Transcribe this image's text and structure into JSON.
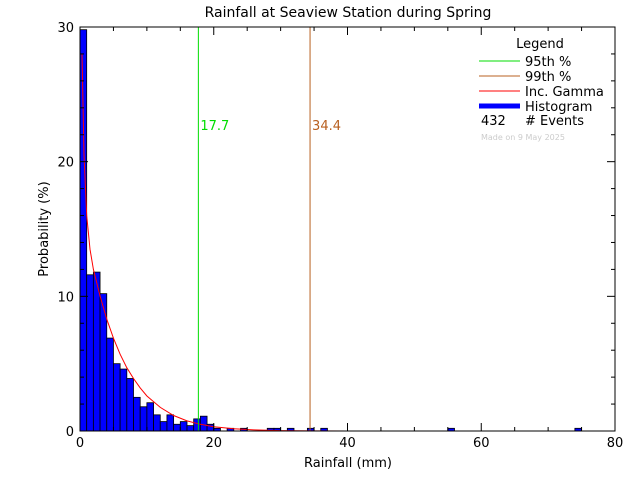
{
  "chart_data": {
    "type": "bar",
    "title": "Rainfall at Seaview Station during Spring",
    "xlabel": "Rainfall (mm)",
    "ylabel": "Probability (%)",
    "xlim": [
      0,
      80
    ],
    "ylim": [
      0,
      30
    ],
    "x_ticks": [
      0,
      20,
      40,
      60,
      80
    ],
    "y_ticks": [
      0,
      10,
      20,
      30
    ],
    "bin_width_mm": 1,
    "histogram": {
      "name": "Histogram",
      "color": "#0000ff",
      "bins": [
        {
          "x": 0,
          "value": 29.8
        },
        {
          "x": 1,
          "value": 11.6
        },
        {
          "x": 2,
          "value": 11.8
        },
        {
          "x": 3,
          "value": 10.2
        },
        {
          "x": 4,
          "value": 6.9
        },
        {
          "x": 5,
          "value": 5.0
        },
        {
          "x": 6,
          "value": 4.6
        },
        {
          "x": 7,
          "value": 3.9
        },
        {
          "x": 8,
          "value": 2.5
        },
        {
          "x": 9,
          "value": 1.8
        },
        {
          "x": 10,
          "value": 2.1
        },
        {
          "x": 11,
          "value": 1.2
        },
        {
          "x": 12,
          "value": 0.7
        },
        {
          "x": 13,
          "value": 1.2
        },
        {
          "x": 14,
          "value": 0.5
        },
        {
          "x": 15,
          "value": 0.7
        },
        {
          "x": 16,
          "value": 0.4
        },
        {
          "x": 17,
          "value": 0.9
        },
        {
          "x": 18,
          "value": 1.1
        },
        {
          "x": 19,
          "value": 0.5
        },
        {
          "x": 20,
          "value": 0.2
        },
        {
          "x": 22,
          "value": 0.2
        },
        {
          "x": 24,
          "value": 0.2
        },
        {
          "x": 28,
          "value": 0.2
        },
        {
          "x": 29,
          "value": 0.2
        },
        {
          "x": 31,
          "value": 0.2
        },
        {
          "x": 34,
          "value": 0.2
        },
        {
          "x": 36,
          "value": 0.2
        },
        {
          "x": 55,
          "value": 0.2
        },
        {
          "x": 74,
          "value": 0.2
        }
      ]
    },
    "gamma_curve": {
      "name": "Inc. Gamma",
      "color": "#ff0000",
      "points": [
        [
          0.3,
          28.0
        ],
        [
          0.6,
          20.5
        ],
        [
          1,
          16.0
        ],
        [
          1.5,
          13.5
        ],
        [
          2,
          12.0
        ],
        [
          3,
          10.0
        ],
        [
          4,
          8.3
        ],
        [
          5,
          6.9
        ],
        [
          6,
          5.7
        ],
        [
          7,
          4.7
        ],
        [
          8,
          3.9
        ],
        [
          9,
          3.2
        ],
        [
          10,
          2.6
        ],
        [
          12,
          1.75
        ],
        [
          14,
          1.15
        ],
        [
          16,
          0.75
        ],
        [
          18,
          0.5
        ],
        [
          20,
          0.32
        ],
        [
          23,
          0.16
        ],
        [
          26,
          0.08
        ],
        [
          30,
          0.03
        ],
        [
          35,
          0.01
        ],
        [
          40,
          0.0
        ],
        [
          80,
          0.0
        ]
      ]
    },
    "percentile_lines": [
      {
        "name": "95th %",
        "x": 17.7,
        "label": "17.7",
        "color": "#00dd00"
      },
      {
        "name": "99th %",
        "x": 34.4,
        "label": "34.4",
        "color": "#b86020"
      }
    ],
    "legend": {
      "title": "Legend",
      "placement": "top-right",
      "entries": [
        {
          "label": "95th %",
          "color": "#00dd00"
        },
        {
          "label": "99th %",
          "color": "#b86020"
        },
        {
          "label": "Inc. Gamma",
          "color": "#ff0000"
        },
        {
          "label": "Histogram",
          "color": "#0000ff"
        }
      ],
      "events_count": "432",
      "events_label": "# Events",
      "made_on": "Made on 9 May 2025"
    }
  }
}
